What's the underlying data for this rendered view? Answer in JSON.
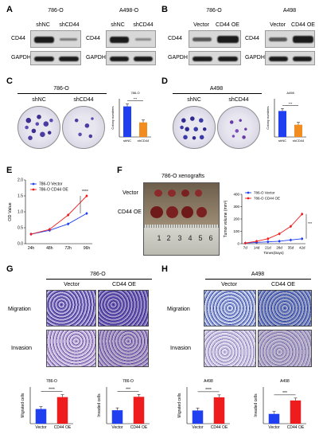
{
  "panels": {
    "A": "A",
    "B": "B",
    "C": "C",
    "D": "D",
    "E": "E",
    "F": "F",
    "G": "G",
    "H": "H"
  },
  "blots": {
    "a1": {
      "title": "786-O",
      "lanes": [
        "shNC",
        "shCD44"
      ],
      "rows": [
        "CD44",
        "GAPDH"
      ]
    },
    "a2": {
      "title": "A498-O",
      "lanes": [
        "shNC",
        "shCD44"
      ],
      "rows": [
        "CD44",
        "GAPDH"
      ]
    },
    "b1": {
      "title": "786-O",
      "lanes": [
        "Vector",
        "CD44 OE"
      ],
      "rows": [
        "CD44",
        "GAPDH"
      ]
    },
    "b2": {
      "title": "A498",
      "lanes": [
        "Vector",
        "CD44 OE"
      ],
      "rows": [
        "CD44",
        "GAPDH"
      ]
    }
  },
  "colony": {
    "c": {
      "title": "786-O",
      "groups": [
        "shNC",
        "shCD44"
      ],
      "mini_title": "786-O",
      "ylabel": "Colony numbers",
      "sig": "***"
    },
    "d": {
      "title": "A498",
      "groups": [
        "shNC",
        "shCD44"
      ],
      "mini_title": "A498",
      "ylabel": "Colony numbers",
      "sig": "***"
    }
  },
  "growth": {
    "ylabel": "OD Value",
    "legend": [
      "786-O Vector",
      "786-O CD44 OE"
    ],
    "xticks": [
      "24h",
      "48h",
      "72h",
      "96h"
    ],
    "yticks": [
      "2.0",
      "1.5",
      "1.0",
      "0.5",
      "0.0"
    ],
    "sig": "****"
  },
  "xeno": {
    "title": "786-O xenografts",
    "rows": [
      "Vector",
      "CD44 OE"
    ],
    "ruler": [
      "1",
      "2",
      "3",
      "4",
      "5",
      "6"
    ],
    "ylabel": "Tumor volume (mm³)",
    "xlabel": "Times(Days)",
    "xticks": [
      "7d",
      "14d",
      "21d",
      "28d",
      "35d",
      "42d"
    ],
    "yticks": [
      "400",
      "300",
      "200",
      "100",
      "0"
    ],
    "legend": [
      "786-O Vector",
      "786-O CD44 OE"
    ],
    "sig": "***"
  },
  "transwell": {
    "g": {
      "title": "786-O",
      "cols": [
        "Vector",
        "CD44 OE"
      ],
      "rows": [
        "Migration",
        "Invasion"
      ]
    },
    "h": {
      "title": "A498",
      "cols": [
        "Vector",
        "CD44 OE"
      ],
      "rows": [
        "Migration",
        "Invasion"
      ]
    }
  },
  "bars_g": {
    "mig": {
      "title": "786-O",
      "ylabel": "Migrated cells",
      "sig": "****"
    },
    "inv": {
      "title": "786-O",
      "ylabel": "Invaded cells",
      "sig": "***"
    },
    "cats": [
      "Vector",
      "CD44 OE"
    ]
  },
  "bars_h": {
    "mig": {
      "title": "A498",
      "ylabel": "Migrated cells",
      "sig": "****"
    },
    "inv": {
      "title": "A498",
      "ylabel": "Invaded cells",
      "sig": "***"
    },
    "cats": [
      "Vector",
      "CD44 OE"
    ]
  },
  "colors": {
    "blue": "#1f3ff0",
    "red": "#ee1c1c",
    "orange": "#f28c1e"
  },
  "chart_data": [
    {
      "type": "bar",
      "title": "786-O",
      "categories": [
        "shNC",
        "shCD44"
      ],
      "values": [
        80,
        38
      ],
      "ylabel": "Colony numbers",
      "ylim": [
        0,
        100
      ]
    },
    {
      "type": "bar",
      "title": "A498",
      "categories": [
        "shNC",
        "shCD44"
      ],
      "values": [
        68,
        32
      ],
      "ylabel": "Colony numbers",
      "ylim": [
        0,
        100
      ]
    },
    {
      "type": "line",
      "x": [
        "24h",
        "48h",
        "72h",
        "96h"
      ],
      "ylabel": "OD Value",
      "ylim": [
        0,
        2.0
      ],
      "series": [
        {
          "name": "786-O Vector",
          "values": [
            0.3,
            0.42,
            0.62,
            0.95
          ]
        },
        {
          "name": "786-O CD44 OE",
          "values": [
            0.3,
            0.45,
            0.9,
            1.5
          ]
        }
      ]
    },
    {
      "type": "line",
      "x": [
        "7d",
        "14d",
        "21d",
        "28d",
        "35d",
        "42d"
      ],
      "ylabel": "Tumor volume (mm³)",
      "xlabel": "Times(Days)",
      "ylim": [
        0,
        400
      ],
      "series": [
        {
          "name": "786-O Vector",
          "values": [
            5,
            10,
            15,
            20,
            30,
            40
          ]
        },
        {
          "name": "786-O CD44 OE",
          "values": [
            5,
            20,
            40,
            80,
            140,
            240
          ]
        }
      ]
    },
    {
      "type": "bar",
      "title": "786-O",
      "categories": [
        "Vector",
        "CD44 OE"
      ],
      "values": [
        80,
        145
      ],
      "ylabel": "Migrated cells",
      "ylim": [
        0,
        200
      ]
    },
    {
      "type": "bar",
      "title": "786-O",
      "categories": [
        "Vector",
        "CD44 OE"
      ],
      "values": [
        55,
        110
      ],
      "ylabel": "Invaded cells",
      "ylim": [
        0,
        150
      ]
    },
    {
      "type": "bar",
      "title": "A498",
      "categories": [
        "Vector",
        "CD44 OE"
      ],
      "values": [
        90,
        180
      ],
      "ylabel": "Migrated cells",
      "ylim": [
        0,
        250
      ]
    },
    {
      "type": "bar",
      "title": "A498",
      "categories": [
        "Vector",
        "CD44 OE"
      ],
      "values": [
        40,
        95
      ],
      "ylabel": "Invaded cells",
      "ylim": [
        0,
        150
      ]
    }
  ]
}
